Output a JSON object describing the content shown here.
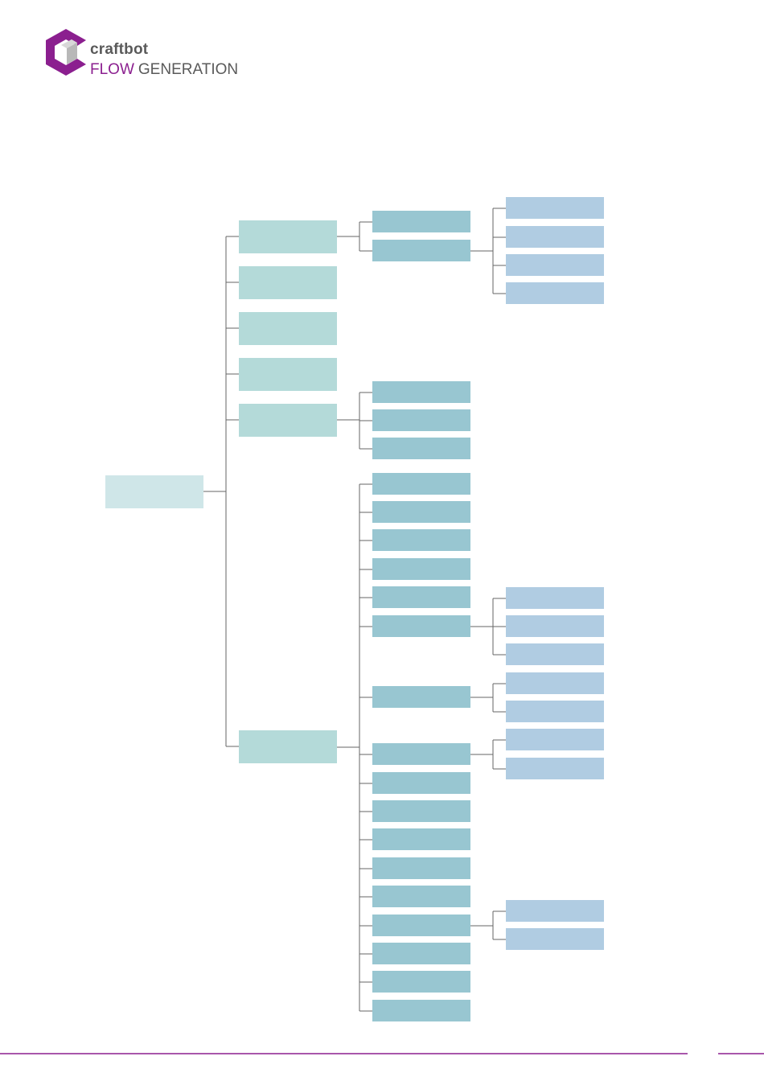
{
  "header": {
    "brand": "craftbot",
    "product_highlight": "FLOW",
    "product": "GENERATION"
  }
}
